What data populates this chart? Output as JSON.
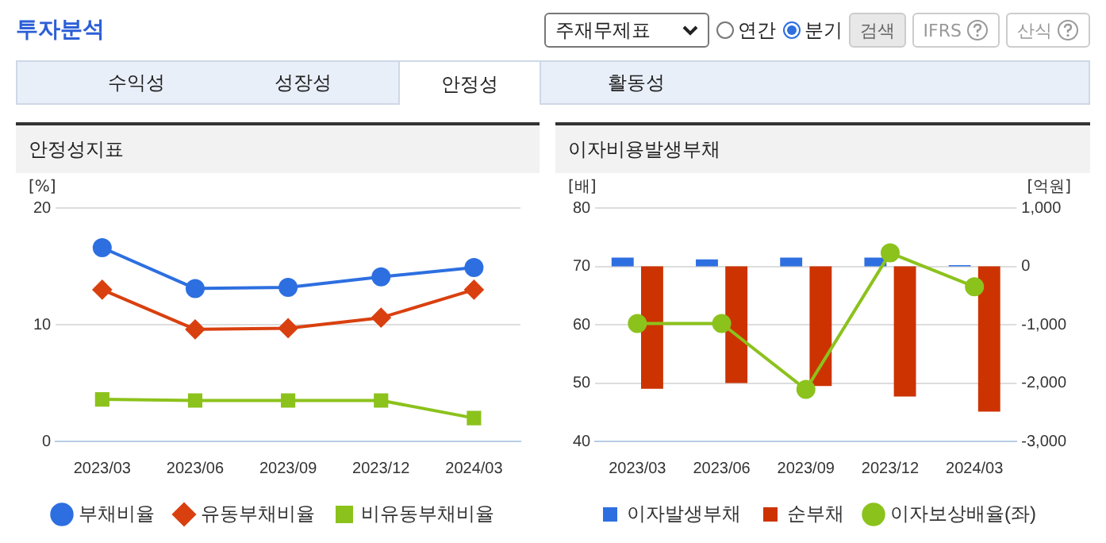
{
  "chart_data": [
    {
      "type": "other",
      "title": "투자분석",
      "annotations": [
        "주재무제표",
        "연간",
        "분기",
        "검색",
        "IFRS",
        "산식",
        "수익성",
        "성장성",
        "안정성",
        "활동성"
      ]
    },
    {
      "type": "line",
      "title": "안정성지표",
      "ylabel": "[%]",
      "categories": [
        "2023/03",
        "2023/06",
        "2023/09",
        "2023/12",
        "2024/03"
      ],
      "series": [
        {
          "name": "부채비율",
          "color": "#2d6fe0",
          "marker": "circle",
          "values": [
            16.6,
            13.1,
            13.2,
            14.1,
            14.9
          ]
        },
        {
          "name": "유동부채비율",
          "color": "#d9400f",
          "marker": "diamond",
          "values": [
            13.0,
            9.6,
            9.7,
            10.6,
            13.0
          ]
        },
        {
          "name": "비유동부채비율",
          "color": "#8cc21c",
          "marker": "square",
          "values": [
            3.6,
            3.5,
            3.5,
            3.5,
            2.0
          ]
        }
      ],
      "ylim": [
        0,
        20
      ],
      "yticks": [
        0,
        10,
        20
      ],
      "grid": "y",
      "legend": "bottom"
    },
    {
      "type": "bar",
      "title": "이자비용발생부채",
      "ylabel": "[배]",
      "y2label": "[억원]",
      "categories": [
        "2023/03",
        "2023/06",
        "2023/09",
        "2023/12",
        "2024/03"
      ],
      "series": [
        {
          "name": "이자발생부채",
          "color": "#2d6fe0",
          "axis": "y2",
          "values": [
            150,
            120,
            150,
            150,
            20
          ]
        },
        {
          "name": "순부채",
          "color": "#cc3300",
          "axis": "y2",
          "values": [
            -2100,
            -2000,
            -2050,
            -2230,
            -2490
          ]
        },
        {
          "name": "이자보상배율(좌)",
          "type": "line",
          "color": "#8cc21c",
          "marker": "circle",
          "axis": "y",
          "values": [
            60.2,
            60.2,
            48.9,
            72.3,
            66.5
          ]
        }
      ],
      "ylim": [
        40,
        80
      ],
      "yticks": [
        40,
        50,
        60,
        70,
        80
      ],
      "y2lim": [
        -3000,
        1000
      ],
      "y2ticks": [
        {
          "value": -3000,
          "label": "-3,000"
        },
        {
          "value": -2000,
          "label": "-2,000"
        },
        {
          "value": -1000,
          "label": "-1,000"
        },
        0,
        {
          "value": 1000,
          "label": "1,000"
        }
      ],
      "grid": "y",
      "legend": "bottom"
    }
  ]
}
